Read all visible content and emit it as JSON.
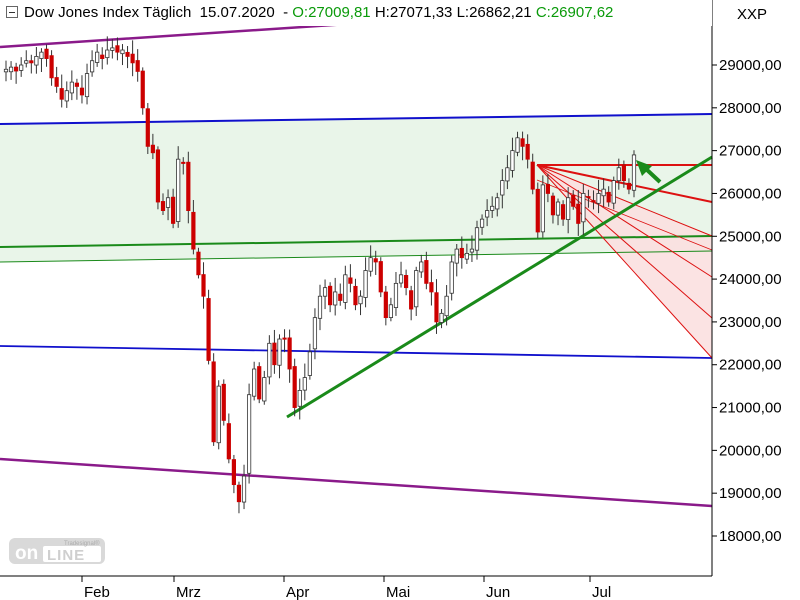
{
  "header": {
    "title": "Dow Jones Index Täglich",
    "date": "15.07.2020",
    "open": "O:27009,81",
    "high": "H:27071,33",
    "low": "L:26862,21",
    "close": "C:26907,62",
    "symbol": "XXP"
  },
  "logo": {
    "text": "onLine",
    "small": "Tradesignal®"
  },
  "colors": {
    "up": "#ffffff",
    "down": "#cc0000",
    "wick": "#333333",
    "green_trend": "#1a8a1a",
    "blue": "#1010cc",
    "purple": "#8a1a8a",
    "red_fan": "#dd1111",
    "zone_fill": "#e9f5e9"
  },
  "chart_data": {
    "type": "candlestick",
    "x_labels": [
      "Feb",
      "Mrz",
      "Apr",
      "Mai",
      "Jun",
      "Jul"
    ],
    "y_ticks": [
      "29000,00",
      "28000,00",
      "27000,00",
      "26000,00",
      "25000,00",
      "24000,00",
      "23000,00",
      "22000,00",
      "21000,00",
      "20000,00",
      "19000,00",
      "18000,00"
    ],
    "ylim": [
      17200,
      30300
    ],
    "closes": [
      28900,
      28950,
      28860,
      29000,
      29100,
      29050,
      29200,
      29300,
      29150,
      28700,
      28500,
      28200,
      28400,
      28600,
      28500,
      28300,
      28800,
      29100,
      29300,
      29150,
      29350,
      29400,
      29300,
      29350,
      29200,
      29050,
      28850,
      28000,
      27100,
      26950,
      25800,
      25600,
      25900,
      25300,
      26800,
      26700,
      25600,
      24700,
      24100,
      23600,
      22100,
      20200,
      21500,
      20700,
      19800,
      19200,
      18800,
      19400,
      21300,
      21900,
      21200,
      21700,
      22500,
      22000,
      22600,
      22600,
      21900,
      21000,
      21400,
      21700,
      22300,
      23100,
      23600,
      23800,
      23400,
      23700,
      23500,
      24100,
      23900,
      23400,
      23600,
      24200,
      24500,
      24400,
      23700,
      23100,
      23400,
      23900,
      24100,
      23800,
      23300,
      24200,
      24400,
      23900,
      23700,
      23000,
      23200,
      23600,
      24400,
      24700,
      24500,
      24600,
      24700,
      25200,
      25400,
      25600,
      25700,
      25900,
      26300,
      26600,
      27000,
      27300,
      27100,
      26800,
      26100,
      25100,
      26200,
      26000,
      25500,
      25800,
      25400,
      25900,
      25700,
      25300,
      26000,
      25900,
      25800,
      26000,
      26100,
      25800,
      26300,
      26600,
      26300,
      26100,
      26900
    ]
  }
}
